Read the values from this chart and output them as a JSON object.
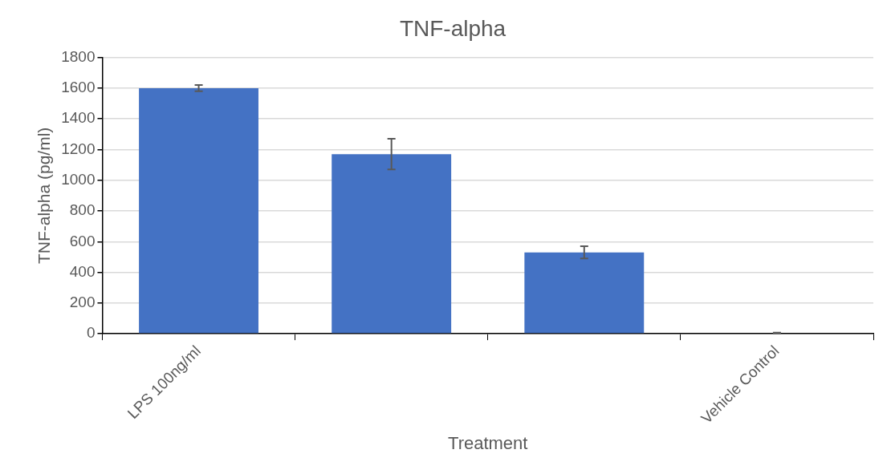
{
  "chart_data": {
    "type": "bar",
    "title": "TNF-alpha",
    "xlabel": "Treatment",
    "ylabel": "TNF-alpha (pg/ml)",
    "categories": [
      "LPS 100ng/ml",
      null,
      null,
      "Vehicle Control"
    ],
    "values": [
      1600,
      1170,
      530,
      5
    ],
    "errors": [
      20,
      100,
      40,
      2
    ],
    "color": "#4472c4",
    "ylim": [
      0,
      1800
    ],
    "yticks": [
      0,
      200,
      400,
      600,
      800,
      1000,
      1200,
      1400,
      1600,
      1800
    ],
    "grid": "y",
    "legend": false
  }
}
